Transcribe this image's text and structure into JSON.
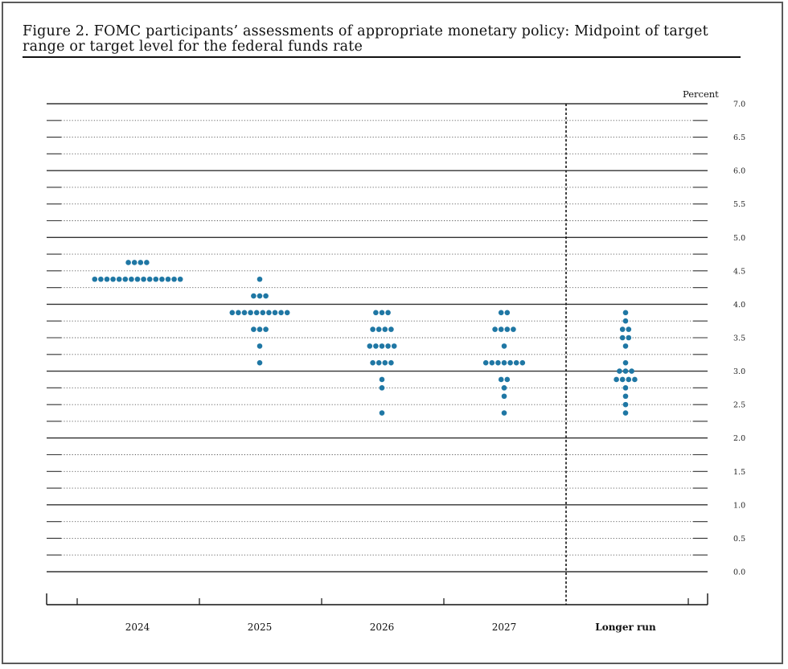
{
  "figure": {
    "title": "Figure 2.  FOMC participants’ assessments of appropriate monetary policy:  Midpoint of target range or target level for the federal funds rate"
  },
  "colors": {
    "dot": "#1f77a4",
    "text": "#111111",
    "gridline": "#333333"
  },
  "chart_data": {
    "type": "scatter",
    "style": "dot plot",
    "yunit_label": "Percent",
    "ylim": [
      0.0,
      7.0
    ],
    "yticks": [
      "0.0",
      "0.5",
      "1.0",
      "1.5",
      "2.0",
      "2.5",
      "3.0",
      "3.5",
      "4.0",
      "4.5",
      "5.0",
      "5.5",
      "6.0",
      "6.5",
      "7.0"
    ],
    "grid": true,
    "categories": [
      "2024",
      "2025",
      "2026",
      "2027",
      "Longer run"
    ],
    "series": [
      {
        "category": "2024",
        "points": [
          {
            "y": 4.625,
            "count": 4
          },
          {
            "y": 4.375,
            "count": 15
          }
        ]
      },
      {
        "category": "2025",
        "points": [
          {
            "y": 4.375,
            "count": 1
          },
          {
            "y": 4.125,
            "count": 3
          },
          {
            "y": 3.875,
            "count": 10
          },
          {
            "y": 3.625,
            "count": 3
          },
          {
            "y": 3.375,
            "count": 1
          },
          {
            "y": 3.125,
            "count": 1
          }
        ]
      },
      {
        "category": "2026",
        "points": [
          {
            "y": 3.875,
            "count": 3
          },
          {
            "y": 3.625,
            "count": 4
          },
          {
            "y": 3.375,
            "count": 5
          },
          {
            "y": 3.125,
            "count": 4
          },
          {
            "y": 2.875,
            "count": 1
          },
          {
            "y": 2.75,
            "count": 1
          },
          {
            "y": 2.375,
            "count": 1
          }
        ]
      },
      {
        "category": "2027",
        "points": [
          {
            "y": 3.875,
            "count": 2
          },
          {
            "y": 3.625,
            "count": 4
          },
          {
            "y": 3.375,
            "count": 1
          },
          {
            "y": 3.125,
            "count": 7
          },
          {
            "y": 2.875,
            "count": 2
          },
          {
            "y": 2.75,
            "count": 1
          },
          {
            "y": 2.625,
            "count": 1
          },
          {
            "y": 2.375,
            "count": 1
          }
        ]
      },
      {
        "category": "Longer run",
        "points": [
          {
            "y": 3.875,
            "count": 1
          },
          {
            "y": 3.75,
            "count": 1
          },
          {
            "y": 3.625,
            "count": 2
          },
          {
            "y": 3.5,
            "count": 2
          },
          {
            "y": 3.375,
            "count": 1
          },
          {
            "y": 3.125,
            "count": 1
          },
          {
            "y": 3.0,
            "count": 3
          },
          {
            "y": 2.875,
            "count": 4
          },
          {
            "y": 2.75,
            "count": 1
          },
          {
            "y": 2.625,
            "count": 1
          },
          {
            "y": 2.5,
            "count": 1
          },
          {
            "y": 2.375,
            "count": 1
          }
        ]
      }
    ]
  }
}
